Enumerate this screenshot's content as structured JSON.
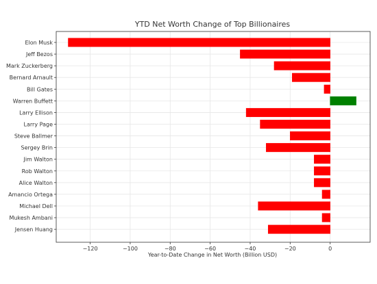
{
  "chart_data": {
    "type": "bar",
    "orientation": "horizontal",
    "title": "YTD Net Worth Change of Top Billionaires",
    "xlabel": "Year-to-Date Change in Net Worth (Billion USD)",
    "ylabel": "",
    "categories": [
      "Elon Musk",
      "Jeff Bezos",
      "Mark Zuckerberg",
      "Bernard Arnault",
      "Bill Gates",
      "Warren Buffett",
      "Larry Ellison",
      "Larry Page",
      "Steve Ballmer",
      "Sergey Brin",
      "Jim Walton",
      "Rob Walton",
      "Alice Walton",
      "Amancio Ortega",
      "Michael Dell",
      "Mukesh Ambani",
      "Jensen Huang"
    ],
    "values": [
      -131,
      -45,
      -28,
      -19,
      -3,
      13,
      -42,
      -35,
      -20,
      -32,
      -8,
      -8,
      -8,
      -4,
      -36,
      -4,
      -31
    ],
    "xlim": [
      -137,
      20
    ],
    "xticks": [
      -120,
      -100,
      -80,
      -60,
      -40,
      -20,
      0
    ],
    "xtick_labels": [
      "−120",
      "−100",
      "−80",
      "−60",
      "−40",
      "−20",
      "0"
    ],
    "grid": true,
    "legend": "none",
    "colors": {
      "negative": "#ff0000",
      "positive": "#008000",
      "axis": "#333333",
      "grid": "#e6e6e6",
      "text": "#333333"
    }
  }
}
